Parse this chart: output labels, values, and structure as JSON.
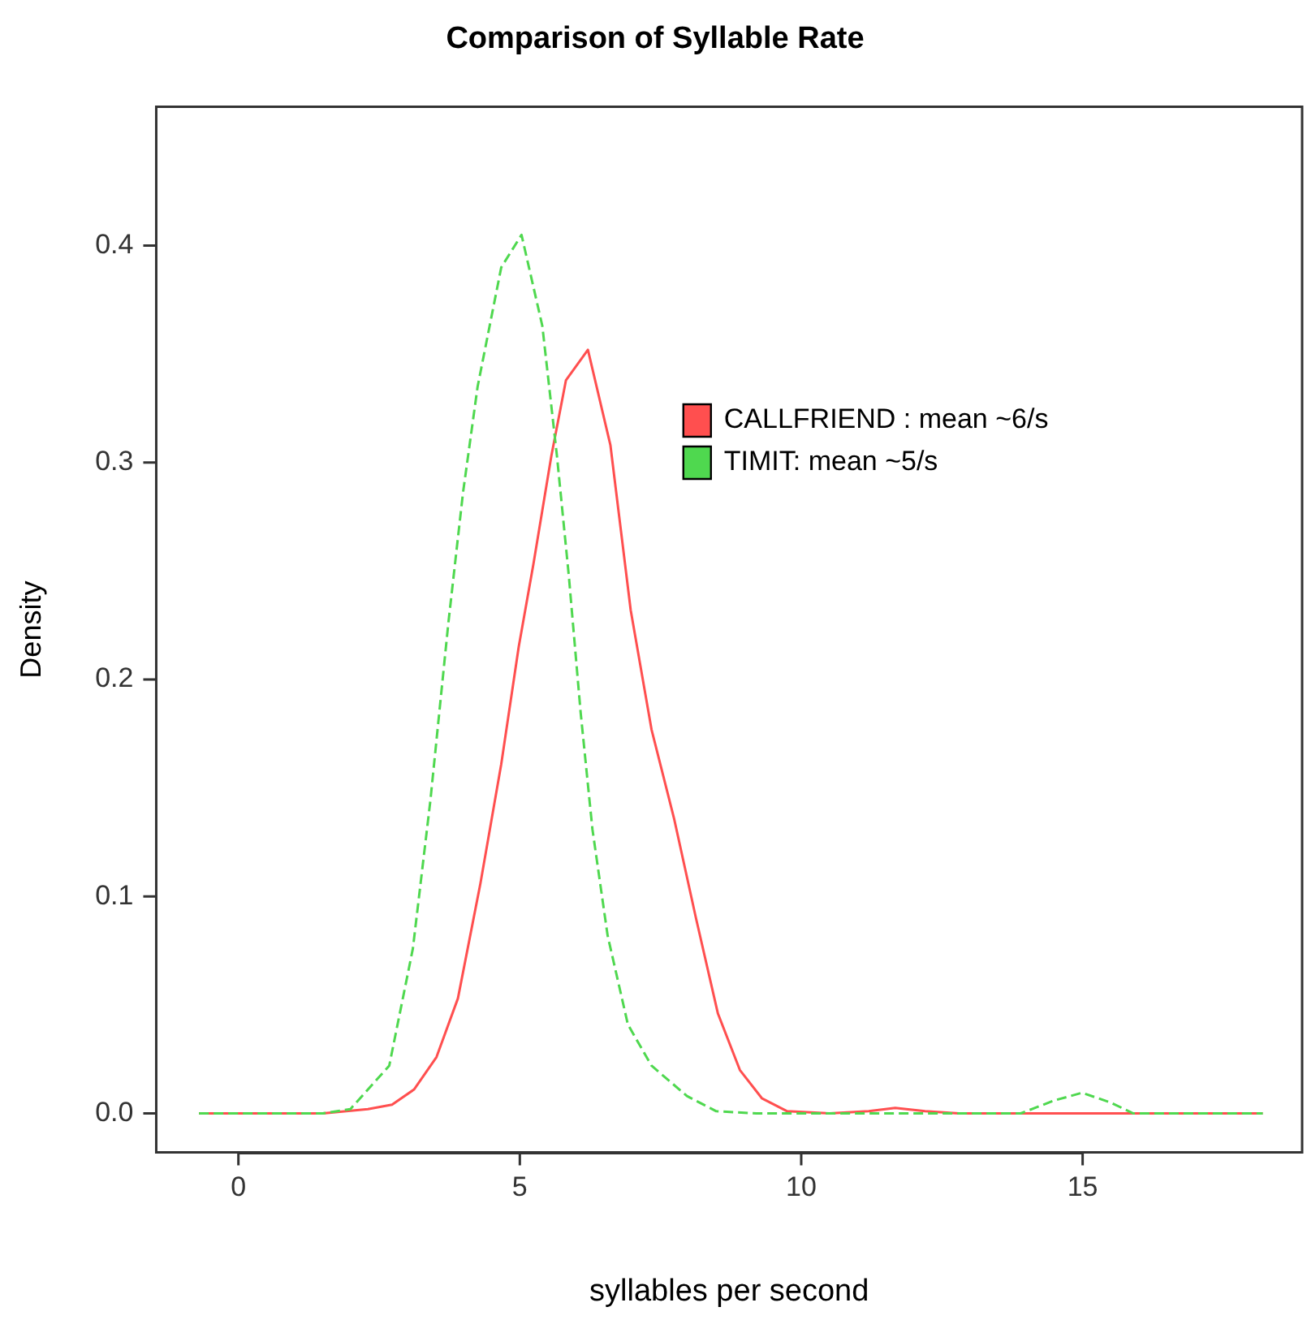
{
  "chart_data": {
    "type": "line",
    "title": "Comparison of Syllable Rate",
    "xlabel": "syllables per second",
    "ylabel": "Density",
    "xlim": [
      -1.46,
      18.9
    ],
    "ylim": [
      -0.018,
      0.464
    ],
    "xticks": [
      0,
      5,
      10,
      15
    ],
    "yticks": [
      {
        "value": 0,
        "label": "0.0"
      },
      {
        "value": 0.1,
        "label": "0.1"
      },
      {
        "value": 0.2,
        "label": "0.2"
      },
      {
        "value": 0.3,
        "label": "0.3"
      },
      {
        "value": 0.4,
        "label": "0.4"
      }
    ],
    "grid": false,
    "legend": "right",
    "marker": "none",
    "series": [
      {
        "name": "CALLFRIEND : mean ~6/s",
        "color": "#ff4f4f",
        "line_style": "solid",
        "x": [
          -0.7,
          1.5,
          2.3,
          2.73,
          3.12,
          3.52,
          3.9,
          4.3,
          4.67,
          4.98,
          5.24,
          5.56,
          5.82,
          6.21,
          6.61,
          6.97,
          7.34,
          7.74,
          8.13,
          8.52,
          8.91,
          9.3,
          9.75,
          10.5,
          11.2,
          11.67,
          12.2,
          12.8,
          18.2
        ],
        "values": [
          0,
          0,
          0.002,
          0.004,
          0.011,
          0.026,
          0.053,
          0.106,
          0.161,
          0.215,
          0.253,
          0.303,
          0.338,
          0.352,
          0.308,
          0.232,
          0.177,
          0.136,
          0.09,
          0.046,
          0.02,
          0.007,
          0.001,
          0,
          0.001,
          0.0025,
          0.001,
          0,
          0
        ]
      },
      {
        "name": "TIMIT: mean ~5/s",
        "color": "#4fd84f",
        "line_style": "dashed",
        "x": [
          -0.7,
          1.5,
          1.99,
          2.68,
          3.1,
          3.41,
          3.73,
          3.99,
          4.25,
          4.67,
          5.03,
          5.4,
          5.66,
          5.87,
          6.08,
          6.29,
          6.56,
          6.92,
          7.34,
          7.97,
          8.49,
          9.2,
          13.9,
          14.5,
          14.99,
          15.5,
          15.9,
          18.2
        ],
        "values": [
          0,
          0,
          0.002,
          0.022,
          0.076,
          0.144,
          0.226,
          0.286,
          0.335,
          0.39,
          0.405,
          0.363,
          0.303,
          0.248,
          0.185,
          0.131,
          0.082,
          0.041,
          0.022,
          0.008,
          0.001,
          0,
          0,
          0.006,
          0.0095,
          0.005,
          0,
          0
        ]
      }
    ]
  }
}
